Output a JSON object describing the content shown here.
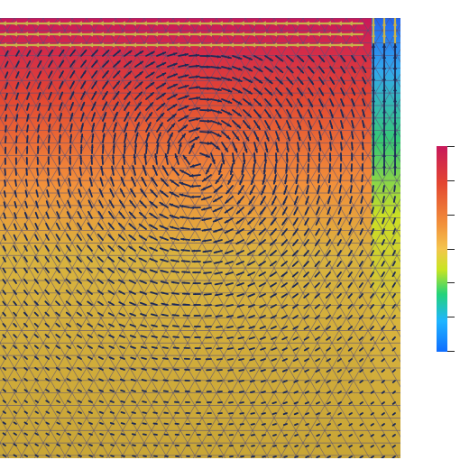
{
  "viewport": {
    "colormap": [
      "#0f6dff",
      "#1fb5ff",
      "#23d37a",
      "#c8e522",
      "#f4c54d",
      "#f2913a",
      "#e34631",
      "#c8185b"
    ],
    "mesh_color": "#57507a",
    "arrow_color": "#1d2b57",
    "background": "#ffffff"
  },
  "colorbar": {
    "ticks": 7,
    "orientation": "vertical"
  }
}
